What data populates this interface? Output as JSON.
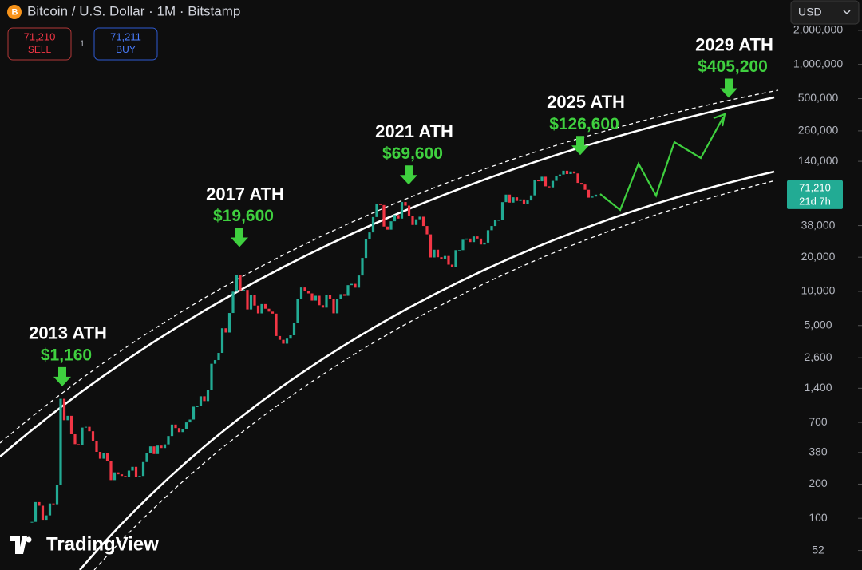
{
  "header": {
    "symbol": "Bitcoin / U.S. Dollar · 1M · Bitstamp",
    "sell_price": "71,210",
    "sell_label": "SELL",
    "quantity": "1",
    "buy_price": "71,211",
    "buy_label": "BUY",
    "currency": "USD",
    "brand": "TradingView"
  },
  "chart_data": {
    "type": "candlestick",
    "log_scale": true,
    "up_color": "#22ab94",
    "down_color": "#f23645",
    "values": [
      93,
      139,
      129,
      97,
      106,
      135,
      133,
      198,
      1130,
      732,
      800,
      550,
      450,
      445,
      630,
      640,
      585,
      480,
      385,
      335,
      375,
      320,
      217,
      254,
      244,
      236,
      230,
      263,
      284,
      230,
      236,
      313,
      377,
      430,
      368,
      437,
      416,
      448,
      531,
      670,
      624,
      575,
      609,
      700,
      742,
      963,
      970,
      1190,
      1080,
      1350,
      2300,
      2480,
      2870,
      4730,
      4340,
      6450,
      9950,
      13850,
      10200,
      10300,
      6930,
      9240,
      7500,
      6400,
      7730,
      7030,
      6630,
      6370,
      4040,
      3740,
      3460,
      3830,
      4100,
      5300,
      8570,
      10820,
      10080,
      9600,
      8290,
      9150,
      7550,
      7190,
      9350,
      8530,
      6410,
      8620,
      9450,
      9140,
      11350,
      11650,
      10780,
      13800,
      19700,
      28990,
      33100,
      45200,
      58800,
      57700,
      37300,
      35000,
      41500,
      47100,
      43800,
      61300,
      57000,
      46200,
      38500,
      43200,
      45500,
      37700,
      31800,
      19900,
      23300,
      20000,
      19400,
      20500,
      17200,
      16500,
      23100,
      23100,
      28500,
      29200,
      27200,
      30500,
      29200,
      25900,
      26900,
      34600,
      37700,
      42300,
      42600,
      61200,
      71300,
      60600,
      67500,
      62700,
      64600,
      58900,
      63300,
      70200,
      96400,
      93400,
      102400,
      84300,
      82500,
      94200,
      104600,
      107100,
      115700,
      108200,
      114000,
      109500,
      90400,
      87500,
      78600,
      67000,
      68500,
      71210
    ],
    "ylim": [
      35,
      3700000
    ],
    "yticks": [
      52,
      100,
      200,
      380,
      700,
      {
        "value": 1400,
        "label": "1,400"
      },
      {
        "value": 2600,
        "label": "2,600"
      },
      {
        "value": 5000,
        "label": "5,000"
      },
      {
        "value": 10000,
        "label": "10,000"
      },
      {
        "value": 20000,
        "label": "20,000"
      },
      {
        "value": 38000,
        "label": "38,000"
      },
      {
        "value": 140000,
        "label": "140,000"
      },
      {
        "value": 260000,
        "label": "260,000"
      },
      {
        "value": 500000,
        "label": "500,000"
      },
      {
        "value": 1000000,
        "label": "1,000,000"
      },
      {
        "value": 2000000,
        "label": "2,000,000"
      }
    ],
    "last_price": {
      "value": 71210,
      "label": "71,210",
      "countdown": "21d 7h"
    },
    "annotations": [
      {
        "title": "2013 ATH",
        "price": {
          "value": 1160,
          "label": "$1,160"
        }
      },
      {
        "title": "2017 ATH",
        "price": {
          "value": 19600,
          "label": "$19,600"
        }
      },
      {
        "title": "2021 ATH",
        "price": {
          "value": 69600,
          "label": "$69,600"
        }
      },
      {
        "title": "2025 ATH",
        "price": {
          "value": 126600,
          "label": "$126,600"
        }
      },
      {
        "title": "2029 ATH",
        "price": {
          "value": 405200,
          "label": "$405,200"
        }
      }
    ]
  }
}
